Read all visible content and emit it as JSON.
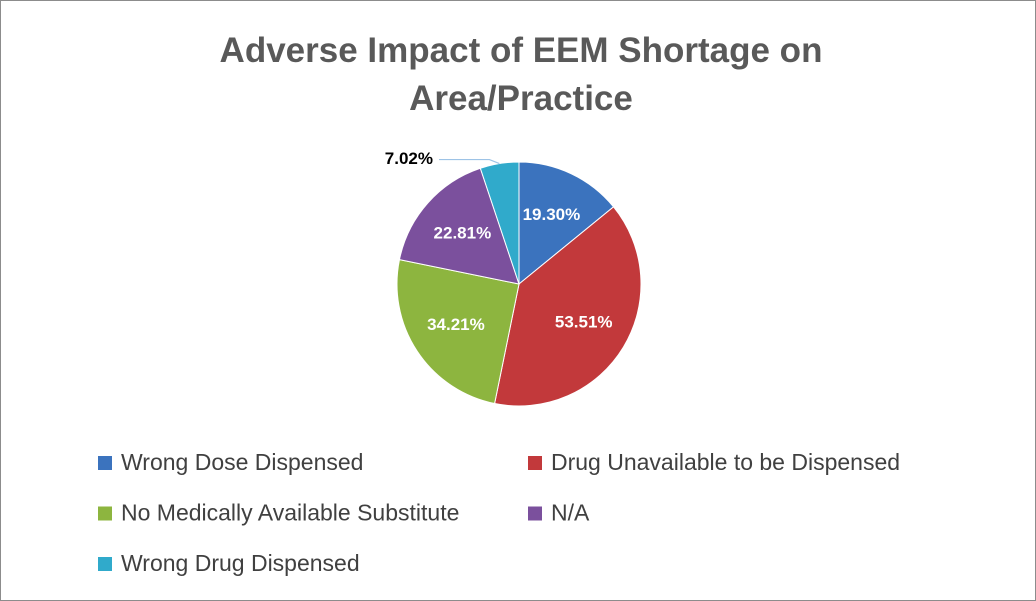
{
  "chart_data": {
    "type": "pie",
    "title": "Adverse Impact of EEM Shortage on Area/Practice",
    "categories": [
      "Wrong Dose Dispensed",
      "Drug Unavailable to be Dispensed",
      "No Medically Available Substitute",
      "N/A",
      "Wrong Drug Dispensed"
    ],
    "values": [
      19.3,
      53.51,
      34.21,
      22.81,
      7.02
    ],
    "value_labels": [
      "19.30%",
      "53.51%",
      "34.21%",
      "22.81%",
      "7.02%"
    ],
    "colors": [
      "#3b73be",
      "#c2393b",
      "#8db53f",
      "#7b509d",
      "#30aacb"
    ],
    "legend": "bottom"
  }
}
